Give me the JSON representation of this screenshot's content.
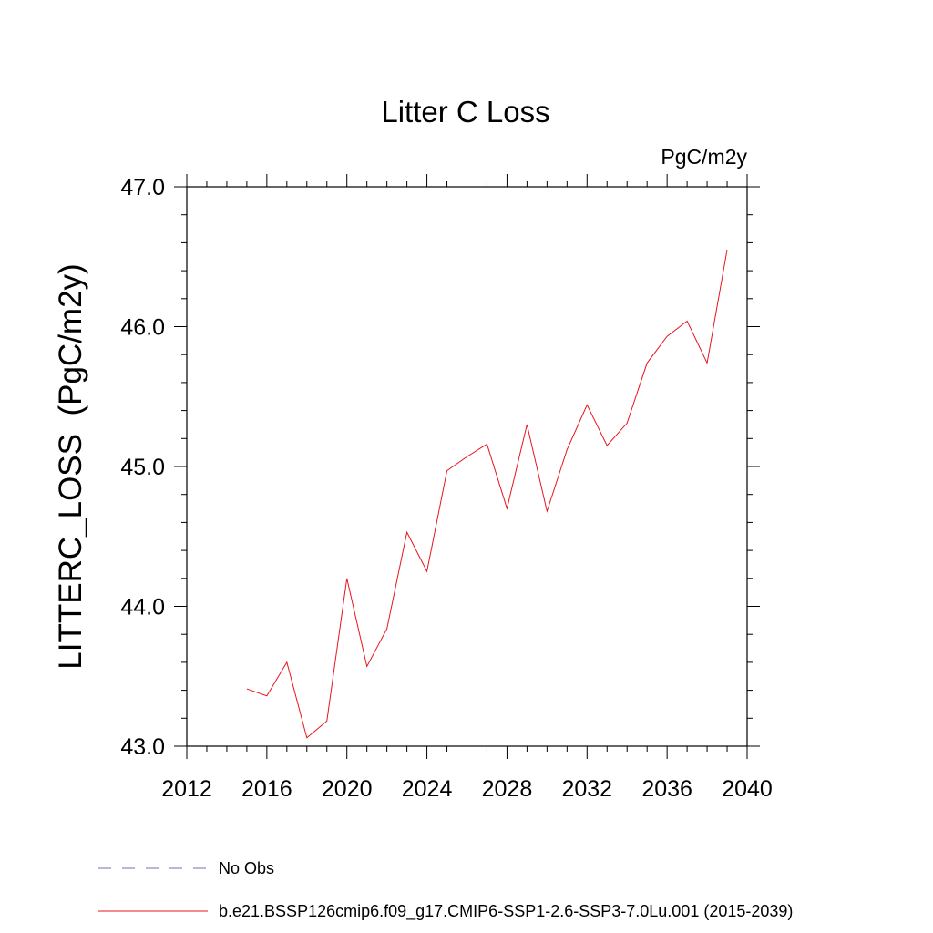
{
  "chart_data": {
    "type": "line",
    "title": "Litter C Loss",
    "units_label": "PgC/m2y",
    "ylabel": "LITTERC_LOSS  (PgC/m2y)",
    "xlabel": "",
    "xlim": [
      2012,
      2040
    ],
    "ylim": [
      43.0,
      47.0
    ],
    "x_major_ticks": [
      2012,
      2016,
      2020,
      2024,
      2028,
      2032,
      2036,
      2040
    ],
    "x_tick_labels": [
      "2012",
      "2016",
      "2020",
      "2024",
      "2028",
      "2032",
      "2036",
      "2040"
    ],
    "x_minor_step": 1,
    "y_major_ticks": [
      43.0,
      44.0,
      45.0,
      46.0,
      47.0
    ],
    "y_tick_labels": [
      "43.0",
      "44.0",
      "45.0",
      "46.0",
      "47.0"
    ],
    "y_minor_step": 0.2,
    "grid": false,
    "series": [
      {
        "name": "b.e21.BSSP126cmip6.f09_g17.CMIP6-SSP1-2.6-SSP3-7.0Lu.001 (2015-2039)",
        "color": "#e8141e",
        "x": [
          2015,
          2016,
          2017,
          2018,
          2019,
          2020,
          2021,
          2022,
          2023,
          2024,
          2025,
          2026,
          2027,
          2028,
          2029,
          2030,
          2031,
          2032,
          2033,
          2034,
          2035,
          2036,
          2037,
          2038,
          2039
        ],
        "values": [
          43.41,
          43.36,
          43.6,
          43.06,
          43.18,
          44.2,
          43.57,
          43.84,
          44.53,
          44.25,
          44.97,
          45.07,
          45.16,
          44.7,
          45.3,
          44.68,
          45.12,
          45.44,
          45.15,
          45.31,
          45.74,
          45.93,
          46.04,
          45.74,
          46.55
        ]
      }
    ],
    "legend": [
      {
        "label": "No Obs",
        "style": "dashed",
        "color": "#7a6fb0"
      },
      {
        "label": "b.e21.BSSP126cmip6.f09_g17.CMIP6-SSP1-2.6-SSP3-7.0Lu.001 (2015-2039)",
        "style": "solid",
        "color": "#e8141e"
      }
    ],
    "legend_position": "bottom"
  }
}
